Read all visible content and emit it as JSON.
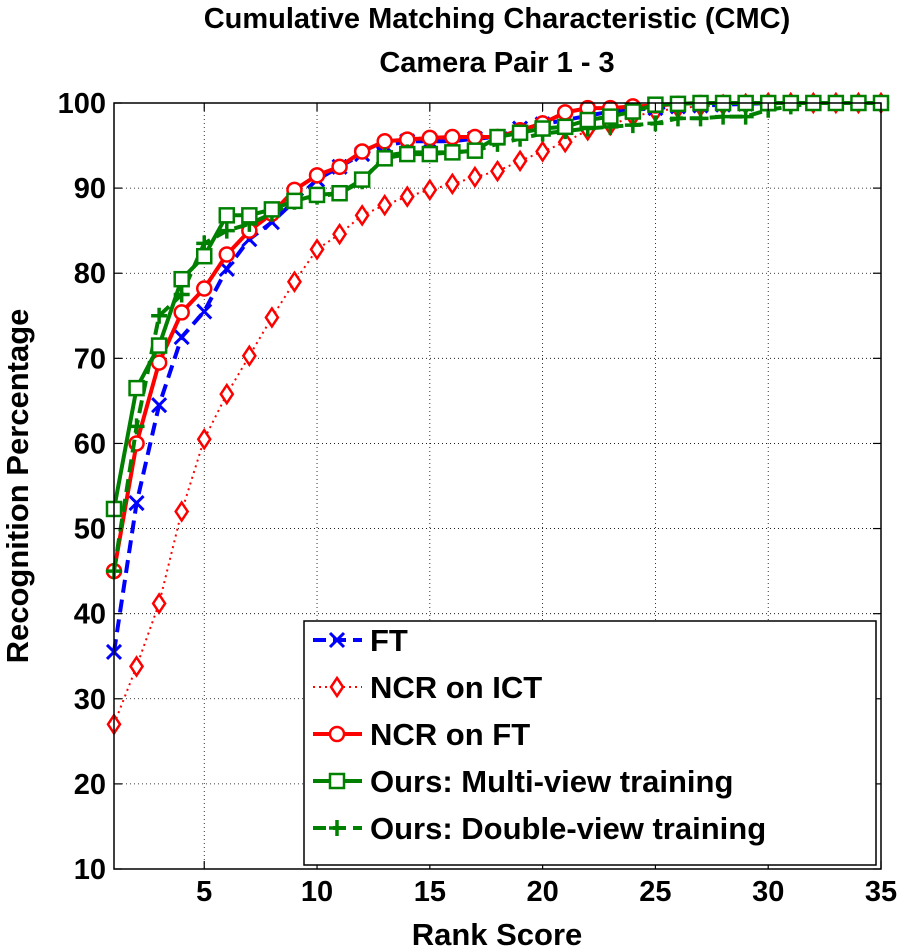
{
  "chart_data": {
    "type": "line",
    "title": "Cumulative Matching Characteristic (CMC)",
    "subtitle": "Camera Pair 1 - 3",
    "xlabel": "Rank Score",
    "ylabel": "Recognition Percentage",
    "xlim": [
      1,
      35
    ],
    "ylim": [
      10,
      100
    ],
    "xticks": [
      5,
      10,
      15,
      20,
      25,
      30,
      35
    ],
    "yticks": [
      10,
      20,
      30,
      40,
      50,
      60,
      70,
      80,
      90,
      100
    ],
    "grid": true,
    "legend_position": "bottom-right",
    "series": [
      {
        "name": "FT",
        "color": "#0000ff",
        "dash": "dashed",
        "marker": "x",
        "x": [
          1,
          2,
          3,
          4,
          5,
          6,
          7,
          8,
          9,
          10,
          11,
          12,
          13,
          14,
          15,
          16,
          17,
          18,
          19,
          20,
          21,
          22,
          23,
          24,
          25,
          26,
          27,
          28,
          29,
          30,
          31,
          32,
          33,
          34,
          35
        ],
        "y": [
          35.5,
          53,
          64.5,
          72.5,
          75.5,
          80.5,
          84,
          86,
          88.5,
          91,
          92.5,
          94,
          95,
          95.5,
          95.5,
          95.5,
          95.8,
          96,
          97,
          97.5,
          98,
          98.5,
          99,
          99.2,
          99.4,
          99.6,
          99.7,
          99.8,
          99.9,
          100,
          100,
          100,
          100,
          100,
          100
        ]
      },
      {
        "name": "NCR on ICT",
        "color": "#ff0000",
        "dash": "dotted",
        "marker": "diamond",
        "x": [
          1,
          2,
          3,
          4,
          5,
          6,
          7,
          8,
          9,
          10,
          11,
          12,
          13,
          14,
          15,
          16,
          17,
          18,
          19,
          20,
          21,
          22,
          23,
          24,
          25,
          26,
          27,
          28,
          29,
          30,
          31,
          32,
          33,
          34,
          35
        ],
        "y": [
          27,
          33.8,
          41.2,
          52,
          60.5,
          65.8,
          70.3,
          74.8,
          79,
          82.8,
          84.6,
          86.8,
          88,
          89,
          89.8,
          90.5,
          91.3,
          92,
          93.2,
          94.3,
          95.4,
          96.8,
          97.4,
          98.4,
          99,
          99.4,
          99.6,
          99.8,
          99.9,
          100,
          100,
          100,
          100,
          100,
          100
        ]
      },
      {
        "name": "NCR on FT",
        "color": "#ff0000",
        "dash": "solid",
        "marker": "circle",
        "x": [
          1,
          2,
          3,
          4,
          5,
          6,
          7,
          8,
          9,
          10,
          11,
          12,
          13,
          14,
          15,
          16,
          17,
          18,
          19,
          20,
          21,
          22,
          23,
          24,
          25,
          26,
          27,
          28,
          29,
          30,
          31,
          32,
          33,
          34,
          35
        ],
        "y": [
          45,
          60,
          69.5,
          75.4,
          78.2,
          82.2,
          85,
          87,
          89.8,
          91.5,
          92.5,
          94.3,
          95.5,
          95.7,
          95.9,
          96,
          96,
          96,
          96.8,
          97.6,
          98.9,
          99.4,
          99.4,
          99.6,
          99.7,
          99.9,
          100,
          100,
          100,
          100,
          100,
          100,
          100,
          100,
          100
        ]
      },
      {
        "name": "Ours: Multi-view training",
        "color": "#008000",
        "dash": "solid",
        "marker": "square",
        "x": [
          1,
          2,
          3,
          4,
          5,
          6,
          7,
          8,
          9,
          10,
          11,
          12,
          13,
          14,
          15,
          16,
          17,
          18,
          19,
          20,
          21,
          22,
          23,
          24,
          25,
          26,
          27,
          28,
          29,
          30,
          31,
          32,
          33,
          34,
          35
        ],
        "y": [
          52.3,
          66.5,
          71.5,
          79.3,
          82,
          86.8,
          86.8,
          87.5,
          88.5,
          89.2,
          89.4,
          91,
          93.5,
          94,
          94,
          94.2,
          94.4,
          96,
          96.5,
          97,
          97.2,
          98,
          98.4,
          99,
          99.8,
          99.9,
          100,
          100,
          100,
          100,
          100,
          100,
          100,
          100,
          100
        ]
      },
      {
        "name": "Ours: Double-view training",
        "color": "#008000",
        "dash": "dashed",
        "marker": "plus",
        "x": [
          1,
          2,
          3,
          4,
          5,
          6,
          7,
          8,
          9,
          10,
          11,
          12,
          13,
          14,
          15,
          16,
          17,
          18,
          19,
          20,
          21,
          22,
          23,
          24,
          25,
          26,
          27,
          28,
          29,
          30,
          31,
          32,
          33,
          34,
          35
        ],
        "y": [
          45,
          62,
          75,
          77.5,
          83.5,
          85,
          85.8,
          87,
          88.4,
          89,
          89.4,
          90.8,
          93.8,
          94.2,
          94.2,
          94.2,
          94.4,
          95.2,
          95.8,
          96.4,
          96.7,
          97,
          97.2,
          97.4,
          97.6,
          98.2,
          98.2,
          98.4,
          98.4,
          99.2,
          99.6,
          100,
          100,
          100,
          100
        ]
      }
    ]
  }
}
